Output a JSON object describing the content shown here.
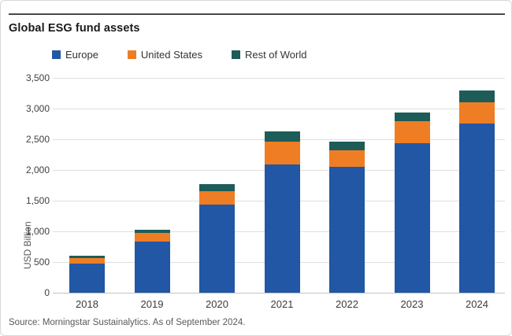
{
  "header": {
    "title": "Global ESG fund assets"
  },
  "source_note": "Source: Morningstar Sustainalytics. As of September 2024.",
  "colors": {
    "europe": "#2157a5",
    "united_states": "#ef7d23",
    "rest_of_world": "#1d5c58",
    "gridline": "#dfdfdf",
    "axis_line": "#c2c2c2",
    "rule": "#4a4a4c",
    "text": "#404040",
    "muted_text": "#595959"
  },
  "chart_data": {
    "type": "bar",
    "stacked": true,
    "title": "Global ESG fund assets",
    "categories": [
      "2018",
      "2019",
      "2020",
      "2021",
      "2022",
      "2023",
      "2024"
    ],
    "series": [
      {
        "name": "Europe",
        "color": "#2157a5",
        "values": [
          480,
          840,
          1440,
          2085,
          2050,
          2440,
          2760
        ]
      },
      {
        "name": "United States",
        "color": "#ef7d23",
        "values": [
          85,
          140,
          220,
          380,
          275,
          350,
          345
        ]
      },
      {
        "name": "Rest of World",
        "color": "#1d5c58",
        "values": [
          40,
          50,
          115,
          165,
          140,
          150,
          185
        ]
      }
    ],
    "totals": [
      605,
      1030,
      1775,
      2630,
      2465,
      2940,
      3290
    ],
    "xlabel": "",
    "ylabel": "USD Billion",
    "ylim": [
      0,
      3500
    ],
    "ytick_step": 500,
    "ytick_labels": [
      "0",
      "500",
      "1,000",
      "1,500",
      "2,000",
      "2,500",
      "3,000",
      "3,500"
    ],
    "grid": "horizontal",
    "legend_position": "top-left"
  }
}
